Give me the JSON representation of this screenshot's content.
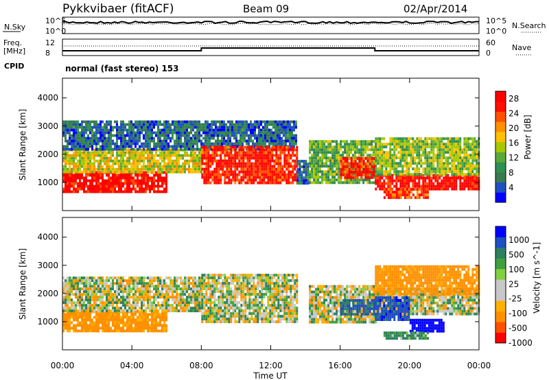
{
  "header": {
    "title": "Pykkvibaer (fitACF)",
    "beam": "Beam 09",
    "date": "02/Apr/2014"
  },
  "panels": {
    "nsky": {
      "left_label": "N.Sky",
      "left_ticks": [
        "10^5",
        "10^0"
      ],
      "right_ticks": [
        "10^5",
        "10^0"
      ],
      "right_label": "N.Search"
    },
    "freq": {
      "left_label_top": "Freq.",
      "left_label_unit": "[MHz]",
      "left_ticks": [
        "12",
        "8"
      ],
      "right_ticks": [
        "60",
        "0"
      ],
      "right_label": "Nave"
    },
    "cpid": {
      "label": "CPID",
      "text": "normal (fast stereo) 153"
    }
  },
  "colors": {
    "power_scale": [
      "#0000ff",
      "#2050c0",
      "#3a7a50",
      "#2e9050",
      "#5aaa3a",
      "#a8c800",
      "#ffc000",
      "#ff9000",
      "#ff5000",
      "#ff1000",
      "#ff0000"
    ],
    "velocity_scale": [
      "#ff0000",
      "#ff5000",
      "#ff9000",
      "#ffb000",
      "#c8c8c8",
      "#c8c8c8",
      "#80d040",
      "#40a040",
      "#2e8060",
      "#2050c0",
      "#0000ff"
    ]
  },
  "chart_data": [
    {
      "type": "heatmap",
      "name": "power",
      "ylabel": "Slant Range [km]",
      "yticks": [
        "1000",
        "2000",
        "3000",
        "4000"
      ],
      "ylim": [
        0,
        4700
      ],
      "colorbar_label": "Power [dB]",
      "colorbar_ticks": [
        "4",
        "8",
        "12",
        "16",
        "20",
        "24",
        "28"
      ],
      "colorbar_range": [
        0,
        30
      ],
      "x_hours": [
        0,
        1,
        2,
        3,
        4,
        5,
        6,
        7,
        8,
        9,
        10,
        11,
        12,
        13,
        14,
        15,
        16,
        17,
        18,
        19,
        20,
        21,
        22,
        23
      ],
      "echo_bands_km": [
        {
          "from_hour": 0,
          "to_hour": 6,
          "range": [
            700,
            1400
          ],
          "db": 28
        },
        {
          "from_hour": 0,
          "to_hour": 8,
          "range": [
            1400,
            2200
          ],
          "db": 16
        },
        {
          "from_hour": 0,
          "to_hour": 13.5,
          "range": [
            2200,
            3200
          ],
          "db": 6
        },
        {
          "from_hour": 8,
          "to_hour": 13.5,
          "range": [
            1000,
            2300
          ],
          "db": 26
        },
        {
          "from_hour": 13.5,
          "to_hour": 14.2,
          "range": [
            1000,
            1800
          ],
          "db": 6
        },
        {
          "from_hour": 14.2,
          "to_hour": 18,
          "range": [
            1000,
            2500
          ],
          "db": 12
        },
        {
          "from_hour": 16,
          "to_hour": 18,
          "range": [
            1200,
            1900
          ],
          "db": 26
        },
        {
          "from_hour": 18,
          "to_hour": 24,
          "range": [
            800,
            1300
          ],
          "db": 28
        },
        {
          "from_hour": 18,
          "to_hour": 24,
          "range": [
            1300,
            2600
          ],
          "db": 14
        },
        {
          "from_hour": 18.5,
          "to_hour": 21,
          "range": [
            500,
            800
          ],
          "db": 24
        }
      ]
    },
    {
      "type": "heatmap",
      "name": "velocity",
      "ylabel": "Slant Range [km]",
      "yticks": [
        "1000",
        "2000",
        "3000",
        "4000"
      ],
      "ylim": [
        0,
        4700
      ],
      "colorbar_label": "Velocity [m s^-1]",
      "colorbar_ticks": [
        "1000",
        "500",
        "100",
        "25",
        "-25",
        "-100",
        "-500",
        "-1000"
      ],
      "colorbar_range": [
        -1000,
        1000
      ],
      "xticks": [
        "00:00",
        "04:00",
        "08:00",
        "12:00",
        "16:00",
        "20:00",
        "00:00"
      ],
      "xlabel": "Time UT",
      "echo_bands_km": [
        {
          "from_hour": 0,
          "to_hour": 6,
          "range": [
            700,
            1400
          ],
          "vel": -200
        },
        {
          "from_hour": 0,
          "to_hour": 8,
          "range": [
            1400,
            2600
          ],
          "vel": 0
        },
        {
          "from_hour": 8,
          "to_hour": 13.5,
          "range": [
            1000,
            2700
          ],
          "vel": 0
        },
        {
          "from_hour": 14.2,
          "to_hour": 18,
          "range": [
            1000,
            2300
          ],
          "vel": 0
        },
        {
          "from_hour": 16,
          "to_hour": 18,
          "range": [
            1300,
            1800
          ],
          "vel": 300
        },
        {
          "from_hour": 18,
          "to_hour": 24,
          "range": [
            1300,
            2200
          ],
          "vel": 0
        },
        {
          "from_hour": 18,
          "to_hour": 20,
          "range": [
            1100,
            1900
          ],
          "vel": 400
        },
        {
          "from_hour": 20,
          "to_hour": 22,
          "range": [
            700,
            1100
          ],
          "vel": 800
        },
        {
          "from_hour": 18,
          "to_hour": 24,
          "range": [
            2000,
            3000
          ],
          "vel": -200
        },
        {
          "from_hour": 18.5,
          "to_hour": 21,
          "range": [
            450,
            650
          ],
          "vel": 150
        }
      ]
    }
  ]
}
